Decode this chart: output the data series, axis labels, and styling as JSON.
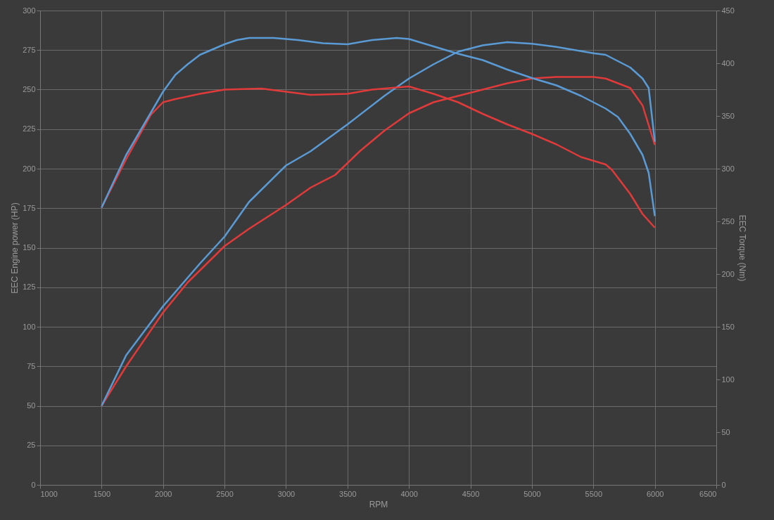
{
  "chart_data": {
    "type": "line",
    "xlabel": "RPM",
    "ylabel": "EEC Engine power (HP)",
    "y2label": "EEC Torque (Nm)",
    "xlim": [
      1000,
      6500
    ],
    "xticks": [
      1000,
      1500,
      2000,
      2500,
      3000,
      3500,
      4000,
      4500,
      5000,
      5500,
      6000,
      6500
    ],
    "ylim": [
      0,
      300
    ],
    "yticks": [
      0,
      25,
      50,
      75,
      100,
      125,
      150,
      175,
      200,
      225,
      250,
      275,
      300
    ],
    "y2lim": [
      0,
      450
    ],
    "y2ticks": [
      0,
      50,
      100,
      150,
      200,
      250,
      300,
      350,
      400,
      450
    ],
    "grid": true,
    "legend": false,
    "line_style": "solid",
    "series": [
      {
        "color": "#e03a3a",
        "axis": "y",
        "x": [
          1500,
          1700,
          2000,
          2200,
          2500,
          2700,
          3000,
          3200,
          3400,
          3600,
          3800,
          4000,
          4200,
          4400,
          4600,
          4800,
          5000,
          5200,
          5500,
          5600,
          5800,
          5900,
          6000
        ],
        "values": [
          50,
          75,
          109,
          128,
          151,
          162,
          177,
          188,
          196,
          211,
          224,
          235,
          242,
          246,
          250,
          254,
          257,
          258,
          258,
          257,
          251,
          240,
          215
        ]
      },
      {
        "color": "#5b9bd5",
        "axis": "y",
        "x": [
          1500,
          1700,
          2000,
          2300,
          2500,
          2700,
          3000,
          3200,
          3500,
          3800,
          4000,
          4200,
          4400,
          4600,
          4800,
          5000,
          5200,
          5500,
          5600,
          5800,
          5900,
          5950,
          6000
        ],
        "values": [
          50,
          82,
          113,
          140,
          157,
          179,
          202,
          211,
          228,
          246,
          257,
          266,
          274,
          278,
          280,
          279,
          277,
          273,
          272,
          264,
          257,
          251,
          217
        ]
      },
      {
        "color": "#e03a3a",
        "axis": "y2",
        "x": [
          1500,
          1700,
          1900,
          2000,
          2100,
          2300,
          2500,
          2800,
          3000,
          3200,
          3500,
          3700,
          3900,
          4000,
          4200,
          4400,
          4600,
          4800,
          5000,
          5200,
          5400,
          5600,
          5650,
          5800,
          5900,
          6000
        ],
        "values": [
          263,
          309,
          351,
          363,
          366,
          371,
          375,
          376,
          373,
          370,
          371,
          375,
          377,
          378,
          371,
          363,
          352,
          342,
          333,
          323,
          311,
          304,
          299,
          276,
          257,
          244
        ]
      },
      {
        "color": "#5b9bd5",
        "axis": "y2",
        "x": [
          1500,
          1700,
          1800,
          2000,
          2100,
          2200,
          2300,
          2500,
          2600,
          2700,
          2900,
          3100,
          3300,
          3500,
          3700,
          3900,
          4000,
          4200,
          4400,
          4600,
          4800,
          5000,
          5200,
          5400,
          5600,
          5700,
          5800,
          5900,
          5950,
          6000
        ],
        "values": [
          263,
          313,
          333,
          373,
          389,
          399,
          408,
          418,
          422,
          424,
          424,
          422,
          419,
          418,
          422,
          424,
          423,
          416,
          409,
          403,
          394,
          386,
          379,
          369,
          357,
          349,
          333,
          313,
          296,
          255
        ]
      }
    ]
  }
}
